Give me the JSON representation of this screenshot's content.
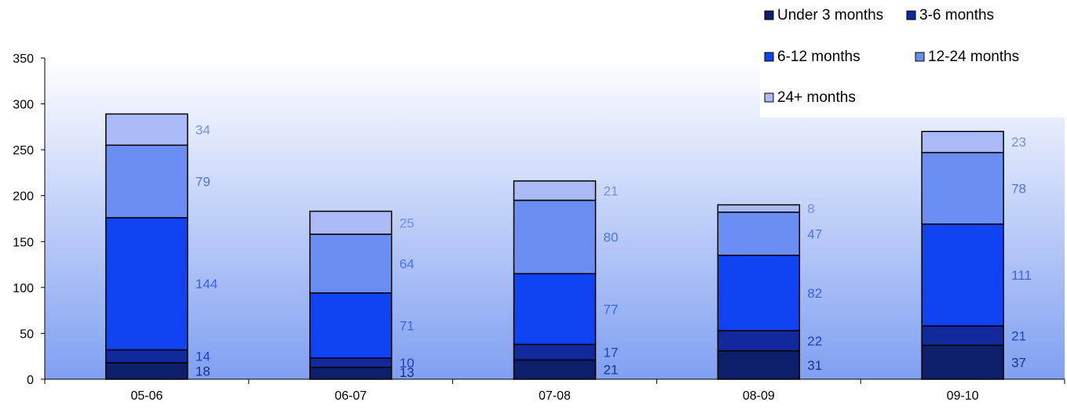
{
  "chart_data": {
    "type": "bar",
    "stacked": true,
    "categories": [
      "05-06",
      "06-07",
      "07-08",
      "08-09",
      "09-10"
    ],
    "ylim": [
      0,
      350
    ],
    "yticks": [
      0,
      50,
      100,
      150,
      200,
      250,
      300,
      350
    ],
    "series": [
      {
        "name": "Under 3 months",
        "color": "#0d1f6b",
        "label_color": "#1a2f8c",
        "values": [
          18,
          13,
          21,
          31,
          37
        ]
      },
      {
        "name": "3-6 months",
        "color": "#12299e",
        "label_color": "#1f3fc8",
        "values": [
          14,
          10,
          17,
          22,
          21
        ]
      },
      {
        "name": "6-12 months",
        "color": "#0f43f2",
        "label_color": "#3a62ee",
        "values": [
          144,
          71,
          77,
          82,
          111
        ]
      },
      {
        "name": "12-24 months",
        "color": "#6b8ef5",
        "label_color": "#4f72ec",
        "values": [
          79,
          64,
          80,
          47,
          78
        ]
      },
      {
        "name": "24+ months",
        "color": "#a9baf7",
        "label_color": "#6f8ff2",
        "values": [
          34,
          25,
          21,
          8,
          23
        ]
      }
    ],
    "legend_position": "top-right",
    "grid": false
  }
}
